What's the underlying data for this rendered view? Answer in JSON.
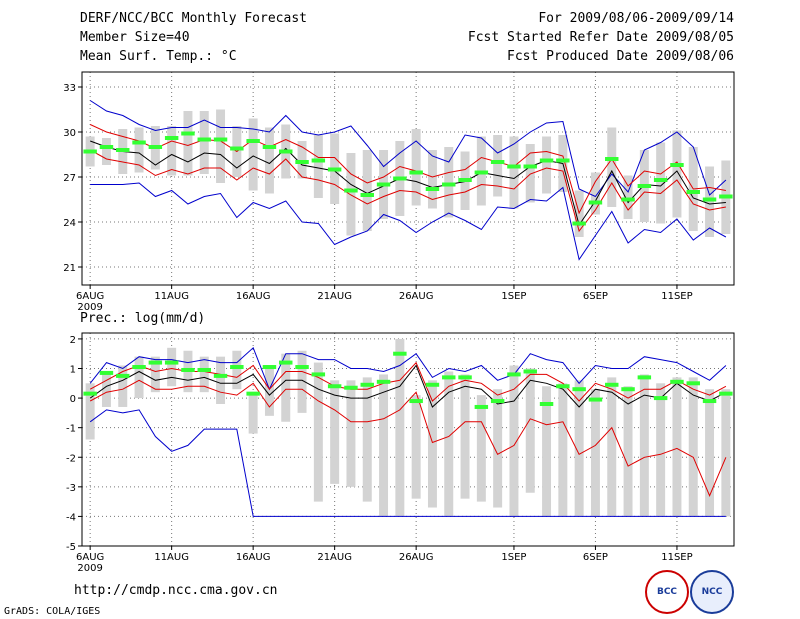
{
  "header": {
    "title": "DERF/NCC/BCC Monthly Forecast",
    "member_size": "Member Size=40",
    "variable": "Mean Surf. Temp.: °C",
    "period": "For 2009/08/06-2009/09/14",
    "fcst_started": "Fcst Started Refer Date 2009/08/05",
    "fcst_produced": "Fcst Produced Date 2009/08/06"
  },
  "footer": {
    "url": "http://cmdp.ncc.cma.gov.cn",
    "credit": "GrADS: COLA/IGES",
    "logo1": "BCC",
    "logo2": "NCC"
  },
  "colors": {
    "box": "#d3d3d3",
    "envelope": "#0000cc",
    "spread": "#e00000",
    "mean": "#000000",
    "median": "#33ff33",
    "grid": "#777777"
  },
  "chart_data": [
    {
      "type": "box-plume",
      "title": "",
      "ylabel": "Mean Surf. Temp.: °C",
      "ylim": [
        19.8,
        34
      ],
      "yticks": [
        21,
        24,
        27,
        30,
        33
      ],
      "xlim": [
        0.5,
        40.5
      ],
      "xticks": [
        {
          "day": 1,
          "label": "6AUG"
        },
        {
          "day": 6,
          "label": "11AUG"
        },
        {
          "day": 11,
          "label": "16AUG"
        },
        {
          "day": 16,
          "label": "21AUG"
        },
        {
          "day": 21,
          "label": "26AUG"
        },
        {
          "day": 27,
          "label": "1SEP"
        },
        {
          "day": 32,
          "label": "6SEP"
        },
        {
          "day": 37,
          "label": "11SEP"
        }
      ],
      "year_label": "2009",
      "days": 40,
      "series": [
        {
          "name": "max",
          "values": [
            32.1,
            31.4,
            31.1,
            30.5,
            30.1,
            30.3,
            30.3,
            30.8,
            30.3,
            30.3,
            30.2,
            30.0,
            31.1,
            30.0,
            29.8,
            30.0,
            30.4,
            29.1,
            27.7,
            28.6,
            29.4,
            28.4,
            28.0,
            29.8,
            29.6,
            28.6,
            29.2,
            30.0,
            30.6,
            30.7,
            26.2,
            25.7,
            27.2,
            26.0,
            28.8,
            29.3,
            30.0,
            29.0,
            25.8,
            26.8
          ]
        },
        {
          "name": "upper",
          "values": [
            30.5,
            30.0,
            29.7,
            29.4,
            28.9,
            29.4,
            29.1,
            29.5,
            29.4,
            28.7,
            29.5,
            29.0,
            29.5,
            29.0,
            28.3,
            28.3,
            27.2,
            26.6,
            27.0,
            27.7,
            27.4,
            27.0,
            27.3,
            27.5,
            28.3,
            28.0,
            27.7,
            28.6,
            28.7,
            28.4,
            24.6,
            26.7,
            28.2,
            26.4,
            27.4,
            27.2,
            28.0,
            26.2,
            26.3,
            26.1
          ]
        },
        {
          "name": "mean",
          "values": [
            29.4,
            29.0,
            28.7,
            28.6,
            27.8,
            28.5,
            28.0,
            28.6,
            28.5,
            27.6,
            28.4,
            27.9,
            28.9,
            27.8,
            27.6,
            27.4,
            26.5,
            25.9,
            26.4,
            26.9,
            26.7,
            26.3,
            26.5,
            26.7,
            27.3,
            27.1,
            26.9,
            27.7,
            28.1,
            27.9,
            23.8,
            25.4,
            27.4,
            25.3,
            26.5,
            26.4,
            27.4,
            25.6,
            25.2,
            25.3
          ]
        },
        {
          "name": "lower",
          "values": [
            28.8,
            28.2,
            28.0,
            27.8,
            27.1,
            27.5,
            27.2,
            27.6,
            27.6,
            26.8,
            27.6,
            27.2,
            28.2,
            27.0,
            26.8,
            26.5,
            25.8,
            25.2,
            25.7,
            26.1,
            26.0,
            25.5,
            25.8,
            26.0,
            26.5,
            26.4,
            26.2,
            27.2,
            27.6,
            27.4,
            23.4,
            24.8,
            26.6,
            24.8,
            26.0,
            25.9,
            26.8,
            25.2,
            24.8,
            25.0
          ]
        },
        {
          "name": "min",
          "values": [
            26.5,
            26.5,
            26.5,
            26.6,
            25.7,
            26.1,
            25.2,
            25.7,
            25.9,
            24.3,
            25.3,
            24.9,
            25.4,
            24.0,
            23.9,
            22.5,
            23.0,
            23.4,
            24.5,
            24.1,
            23.3,
            24.0,
            24.6,
            24.1,
            23.5,
            25.0,
            24.9,
            25.5,
            25.4,
            26.3,
            21.5,
            23.1,
            24.7,
            22.6,
            23.5,
            23.3,
            24.2,
            22.8,
            23.6,
            23.0
          ]
        },
        {
          "name": "median",
          "values": [
            28.7,
            29.0,
            28.8,
            29.3,
            29.0,
            29.6,
            29.9,
            29.5,
            29.5,
            28.9,
            29.4,
            29.0,
            28.7,
            28.0,
            28.1,
            27.5,
            26.1,
            25.8,
            26.5,
            26.9,
            27.3,
            26.2,
            26.5,
            26.8,
            27.3,
            28.0,
            27.7,
            27.7,
            28.1,
            28.1,
            23.9,
            25.3,
            28.2,
            25.5,
            26.4,
            26.8,
            27.8,
            26.0,
            25.5,
            25.7
          ]
        },
        {
          "name": "box_hi",
          "values": [
            29.7,
            29.6,
            30.2,
            30.3,
            30.4,
            30.4,
            31.4,
            31.4,
            31.5,
            30.4,
            30.9,
            30.3,
            30.5,
            29.4,
            29.8,
            29.9,
            28.6,
            28.8,
            28.8,
            29.4,
            30.2,
            28.8,
            29.0,
            28.7,
            29.7,
            29.8,
            29.7,
            29.2,
            29.7,
            29.8,
            26.1,
            27.3,
            30.3,
            27.1,
            28.8,
            29.3,
            30.1,
            29.0,
            27.7,
            28.1
          ]
        },
        {
          "name": "box_lo",
          "values": [
            27.7,
            27.8,
            27.2,
            27.3,
            27.5,
            27.1,
            27.1,
            27.2,
            26.6,
            27.0,
            26.1,
            25.9,
            26.9,
            26.9,
            25.6,
            25.2,
            23.1,
            23.4,
            24.2,
            24.4,
            25.1,
            24.9,
            24.3,
            24.8,
            25.1,
            25.7,
            24.9,
            25.3,
            25.9,
            26.0,
            23.0,
            24.5,
            25.0,
            24.2,
            24.0,
            23.9,
            24.3,
            23.4,
            23.0,
            23.2
          ]
        }
      ]
    },
    {
      "type": "box-plume",
      "title": "Prec.: log(mm/d)",
      "ylabel": "Prec.: log(mm/d)",
      "ylim": [
        -5,
        2.2
      ],
      "yticks": [
        -5,
        -4,
        -3,
        -2,
        -1,
        0,
        1,
        2
      ],
      "xlim": [
        0.5,
        40.5
      ],
      "xticks": [
        {
          "day": 1,
          "label": "6AUG"
        },
        {
          "day": 6,
          "label": "11AUG"
        },
        {
          "day": 11,
          "label": "16AUG"
        },
        {
          "day": 16,
          "label": "21AUG"
        },
        {
          "day": 21,
          "label": "26AUG"
        },
        {
          "day": 27,
          "label": "1SEP"
        },
        {
          "day": 32,
          "label": "6SEP"
        },
        {
          "day": 37,
          "label": "11SEP"
        }
      ],
      "year_label": "2009",
      "days": 40,
      "series": [
        {
          "name": "max",
          "values": [
            0.5,
            1.2,
            1.0,
            1.4,
            1.3,
            1.3,
            1.2,
            1.3,
            1.2,
            1.2,
            1.7,
            0.3,
            1.5,
            1.5,
            1.3,
            1.3,
            1.0,
            1.0,
            0.9,
            1.1,
            1.5,
            0.7,
            1.0,
            0.9,
            1.1,
            0.6,
            0.8,
            1.5,
            1.3,
            1.2,
            0.5,
            1.1,
            1.0,
            1.0,
            1.4,
            1.3,
            1.2,
            0.9,
            0.6,
            1.1
          ]
        },
        {
          "name": "upper",
          "values": [
            0.3,
            0.6,
            0.9,
            1.1,
            0.9,
            1.0,
            0.9,
            0.9,
            0.8,
            0.7,
            1.1,
            0.3,
            0.9,
            0.9,
            0.7,
            0.4,
            0.3,
            0.3,
            0.5,
            0.6,
            1.2,
            -0.1,
            0.4,
            0.6,
            0.5,
            0.1,
            0.3,
            0.8,
            0.8,
            0.5,
            -0.1,
            0.5,
            0.3,
            0.0,
            0.3,
            0.3,
            0.6,
            0.3,
            0.1,
            0.4
          ]
        },
        {
          "name": "mean",
          "values": [
            0.0,
            0.4,
            0.6,
            0.9,
            0.6,
            0.7,
            0.6,
            0.7,
            0.5,
            0.5,
            0.8,
            0.1,
            0.6,
            0.6,
            0.3,
            0.1,
            0.0,
            0.0,
            0.2,
            0.4,
            1.1,
            -0.3,
            0.2,
            0.4,
            0.3,
            -0.2,
            -0.1,
            0.6,
            0.5,
            0.3,
            -0.3,
            0.3,
            0.2,
            -0.2,
            0.1,
            0.0,
            0.5,
            0.1,
            -0.1,
            0.2
          ]
        },
        {
          "name": "lower",
          "values": [
            -0.1,
            0.2,
            0.3,
            0.6,
            0.3,
            0.3,
            0.4,
            0.4,
            0.2,
            0.1,
            0.5,
            -0.3,
            0.3,
            0.3,
            -0.1,
            -0.4,
            -0.8,
            -0.8,
            -0.7,
            -0.4,
            0.2,
            -1.5,
            -1.3,
            -0.8,
            -0.8,
            -1.9,
            -1.6,
            -0.7,
            -0.9,
            -0.8,
            -1.9,
            -1.6,
            -1.0,
            -2.3,
            -2.0,
            -1.9,
            -1.7,
            -2.0,
            -3.3,
            -2.0
          ]
        },
        {
          "name": "min",
          "values": [
            -0.8,
            -0.4,
            -0.5,
            -0.4,
            -1.3,
            -1.8,
            -1.6,
            -1.05,
            -1.05,
            -1.05,
            -4,
            -4,
            -4,
            -4,
            -4,
            -4,
            -4,
            -4,
            -4,
            -4,
            -4,
            -4,
            -4,
            -4,
            -4,
            -4,
            -4,
            -4,
            -4,
            -4,
            -4,
            -4,
            -4,
            -4,
            -4,
            -4,
            -4,
            -4,
            -4,
            -4
          ]
        },
        {
          "name": "median",
          "values": [
            0.15,
            0.85,
            0.75,
            1.05,
            1.2,
            1.2,
            0.95,
            0.95,
            0.75,
            1.05,
            0.15,
            1.05,
            1.2,
            1.05,
            0.8,
            0.4,
            0.35,
            0.45,
            0.55,
            1.5,
            -0.1,
            0.45,
            0.7,
            0.7,
            -0.3,
            -0.1,
            0.8,
            0.9,
            -0.2,
            0.4,
            0.3,
            -0.05,
            0.45,
            0.3,
            0.7,
            0.0,
            0.55,
            0.5,
            -0.1,
            0.15
          ]
        },
        {
          "name": "box_hi",
          "values": [
            0.5,
            0.9,
            1.1,
            1.4,
            1.4,
            1.7,
            1.6,
            1.4,
            1.4,
            1.6,
            0.2,
            1.0,
            1.5,
            1.6,
            1.2,
            0.6,
            0.6,
            0.7,
            0.8,
            2.0,
            0.1,
            0.6,
            0.9,
            0.8,
            0.1,
            0.3,
            1.1,
            1.0,
            0.4,
            0.5,
            0.6,
            0.3,
            0.7,
            0.4,
            0.8,
            0.5,
            0.7,
            0.7,
            0.3,
            0.3
          ]
        },
        {
          "name": "box_lo",
          "values": [
            -1.4,
            -0.3,
            -0.3,
            0.0,
            0.2,
            0.4,
            0.2,
            0.2,
            -0.2,
            0.3,
            -1.2,
            -0.6,
            -0.8,
            -0.5,
            -3.5,
            -2.9,
            -3.0,
            -3.5,
            -4.0,
            -4.0,
            -3.4,
            -3.7,
            -4.0,
            -3.4,
            -3.5,
            -3.7,
            -4.0,
            -3.2,
            -4.0,
            -4.0,
            -4.0,
            -4.0,
            -4.0,
            -4.0,
            -4.0,
            -4.0,
            -4.0,
            -4.0,
            -4.0,
            -4.0
          ]
        }
      ]
    }
  ]
}
